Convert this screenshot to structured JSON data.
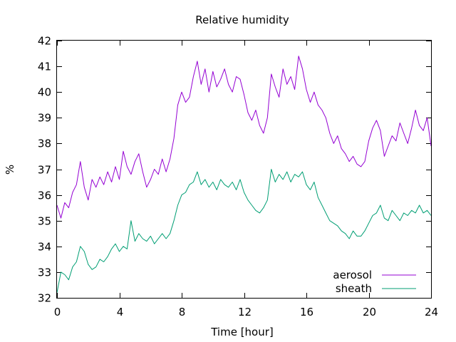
{
  "chart_data": {
    "type": "line",
    "title": "Relative humidity",
    "xlabel": "Time [hour]",
    "ylabel": "%",
    "xlim": [
      0,
      24
    ],
    "ylim": [
      32,
      42
    ],
    "xticks": [
      0,
      4,
      8,
      12,
      16,
      20,
      24
    ],
    "yticks": [
      32,
      33,
      34,
      35,
      36,
      37,
      38,
      39,
      40,
      41,
      42
    ],
    "grid": false,
    "legend_position": "bottom-right",
    "series": [
      {
        "name": "aerosol",
        "color": "#9400d3",
        "points": [
          [
            0.0,
            35.6
          ],
          [
            0.25,
            35.1
          ],
          [
            0.5,
            35.7
          ],
          [
            0.75,
            35.5
          ],
          [
            1.0,
            36.1
          ],
          [
            1.25,
            36.4
          ],
          [
            1.5,
            37.3
          ],
          [
            1.75,
            36.3
          ],
          [
            2.0,
            35.8
          ],
          [
            2.25,
            36.6
          ],
          [
            2.5,
            36.3
          ],
          [
            2.75,
            36.7
          ],
          [
            3.0,
            36.4
          ],
          [
            3.25,
            36.9
          ],
          [
            3.5,
            36.5
          ],
          [
            3.75,
            37.1
          ],
          [
            4.0,
            36.6
          ],
          [
            4.25,
            37.7
          ],
          [
            4.5,
            37.1
          ],
          [
            4.75,
            36.8
          ],
          [
            5.0,
            37.3
          ],
          [
            5.25,
            37.6
          ],
          [
            5.5,
            36.9
          ],
          [
            5.75,
            36.3
          ],
          [
            6.0,
            36.6
          ],
          [
            6.25,
            37.0
          ],
          [
            6.5,
            36.8
          ],
          [
            6.75,
            37.4
          ],
          [
            7.0,
            36.9
          ],
          [
            7.25,
            37.4
          ],
          [
            7.5,
            38.2
          ],
          [
            7.75,
            39.5
          ],
          [
            8.0,
            40.0
          ],
          [
            8.25,
            39.6
          ],
          [
            8.5,
            39.8
          ],
          [
            8.75,
            40.6
          ],
          [
            9.0,
            41.2
          ],
          [
            9.25,
            40.3
          ],
          [
            9.5,
            40.9
          ],
          [
            9.75,
            40.0
          ],
          [
            10.0,
            40.8
          ],
          [
            10.25,
            40.2
          ],
          [
            10.5,
            40.5
          ],
          [
            10.75,
            40.9
          ],
          [
            11.0,
            40.3
          ],
          [
            11.25,
            40.0
          ],
          [
            11.5,
            40.6
          ],
          [
            11.75,
            40.5
          ],
          [
            12.0,
            39.9
          ],
          [
            12.25,
            39.2
          ],
          [
            12.5,
            38.9
          ],
          [
            12.75,
            39.3
          ],
          [
            13.0,
            38.7
          ],
          [
            13.25,
            38.4
          ],
          [
            13.5,
            39.0
          ],
          [
            13.75,
            40.7
          ],
          [
            14.0,
            40.2
          ],
          [
            14.25,
            39.8
          ],
          [
            14.5,
            40.9
          ],
          [
            14.75,
            40.3
          ],
          [
            15.0,
            40.6
          ],
          [
            15.25,
            40.1
          ],
          [
            15.5,
            41.4
          ],
          [
            15.75,
            40.9
          ],
          [
            16.0,
            40.1
          ],
          [
            16.25,
            39.6
          ],
          [
            16.5,
            40.0
          ],
          [
            16.75,
            39.5
          ],
          [
            17.0,
            39.3
          ],
          [
            17.25,
            39.0
          ],
          [
            17.5,
            38.4
          ],
          [
            17.75,
            38.0
          ],
          [
            18.0,
            38.3
          ],
          [
            18.25,
            37.8
          ],
          [
            18.5,
            37.6
          ],
          [
            18.75,
            37.3
          ],
          [
            19.0,
            37.5
          ],
          [
            19.25,
            37.2
          ],
          [
            19.5,
            37.1
          ],
          [
            19.75,
            37.3
          ],
          [
            20.0,
            38.1
          ],
          [
            20.25,
            38.6
          ],
          [
            20.5,
            38.9
          ],
          [
            20.75,
            38.5
          ],
          [
            21.0,
            37.5
          ],
          [
            21.25,
            37.9
          ],
          [
            21.5,
            38.3
          ],
          [
            21.75,
            38.1
          ],
          [
            22.0,
            38.8
          ],
          [
            22.25,
            38.4
          ],
          [
            22.5,
            38.0
          ],
          [
            22.75,
            38.6
          ],
          [
            23.0,
            39.3
          ],
          [
            23.25,
            38.7
          ],
          [
            23.5,
            38.5
          ],
          [
            23.75,
            39.0
          ],
          [
            24.0,
            37.9
          ]
        ]
      },
      {
        "name": "sheath",
        "color": "#009e73",
        "points": [
          [
            0.0,
            32.2
          ],
          [
            0.25,
            33.0
          ],
          [
            0.5,
            32.9
          ],
          [
            0.75,
            32.7
          ],
          [
            1.0,
            33.2
          ],
          [
            1.25,
            33.4
          ],
          [
            1.5,
            34.0
          ],
          [
            1.75,
            33.8
          ],
          [
            2.0,
            33.3
          ],
          [
            2.25,
            33.1
          ],
          [
            2.5,
            33.2
          ],
          [
            2.75,
            33.5
          ],
          [
            3.0,
            33.4
          ],
          [
            3.25,
            33.6
          ],
          [
            3.5,
            33.9
          ],
          [
            3.75,
            34.1
          ],
          [
            4.0,
            33.8
          ],
          [
            4.25,
            34.0
          ],
          [
            4.5,
            33.9
          ],
          [
            4.75,
            35.0
          ],
          [
            5.0,
            34.2
          ],
          [
            5.25,
            34.5
          ],
          [
            5.5,
            34.3
          ],
          [
            5.75,
            34.2
          ],
          [
            6.0,
            34.4
          ],
          [
            6.25,
            34.1
          ],
          [
            6.5,
            34.3
          ],
          [
            6.75,
            34.5
          ],
          [
            7.0,
            34.3
          ],
          [
            7.25,
            34.5
          ],
          [
            7.5,
            35.0
          ],
          [
            7.75,
            35.6
          ],
          [
            8.0,
            36.0
          ],
          [
            8.25,
            36.1
          ],
          [
            8.5,
            36.4
          ],
          [
            8.75,
            36.5
          ],
          [
            9.0,
            36.9
          ],
          [
            9.25,
            36.4
          ],
          [
            9.5,
            36.6
          ],
          [
            9.75,
            36.3
          ],
          [
            10.0,
            36.5
          ],
          [
            10.25,
            36.2
          ],
          [
            10.5,
            36.6
          ],
          [
            10.75,
            36.4
          ],
          [
            11.0,
            36.3
          ],
          [
            11.25,
            36.5
          ],
          [
            11.5,
            36.2
          ],
          [
            11.75,
            36.6
          ],
          [
            12.0,
            36.1
          ],
          [
            12.25,
            35.8
          ],
          [
            12.5,
            35.6
          ],
          [
            12.75,
            35.4
          ],
          [
            13.0,
            35.3
          ],
          [
            13.25,
            35.5
          ],
          [
            13.5,
            35.8
          ],
          [
            13.75,
            37.0
          ],
          [
            14.0,
            36.5
          ],
          [
            14.25,
            36.8
          ],
          [
            14.5,
            36.6
          ],
          [
            14.75,
            36.9
          ],
          [
            15.0,
            36.5
          ],
          [
            15.25,
            36.8
          ],
          [
            15.5,
            36.7
          ],
          [
            15.75,
            36.9
          ],
          [
            16.0,
            36.4
          ],
          [
            16.25,
            36.2
          ],
          [
            16.5,
            36.5
          ],
          [
            16.75,
            35.9
          ],
          [
            17.0,
            35.6
          ],
          [
            17.25,
            35.3
          ],
          [
            17.5,
            35.0
          ],
          [
            17.75,
            34.9
          ],
          [
            18.0,
            34.8
          ],
          [
            18.25,
            34.6
          ],
          [
            18.5,
            34.5
          ],
          [
            18.75,
            34.3
          ],
          [
            19.0,
            34.6
          ],
          [
            19.25,
            34.4
          ],
          [
            19.5,
            34.4
          ],
          [
            19.75,
            34.6
          ],
          [
            20.0,
            34.9
          ],
          [
            20.25,
            35.2
          ],
          [
            20.5,
            35.3
          ],
          [
            20.75,
            35.6
          ],
          [
            21.0,
            35.1
          ],
          [
            21.25,
            35.0
          ],
          [
            21.5,
            35.4
          ],
          [
            21.75,
            35.2
          ],
          [
            22.0,
            35.0
          ],
          [
            22.25,
            35.3
          ],
          [
            22.5,
            35.2
          ],
          [
            22.75,
            35.4
          ],
          [
            23.0,
            35.3
          ],
          [
            23.25,
            35.6
          ],
          [
            23.5,
            35.3
          ],
          [
            23.75,
            35.4
          ],
          [
            24.0,
            35.2
          ]
        ]
      }
    ]
  }
}
